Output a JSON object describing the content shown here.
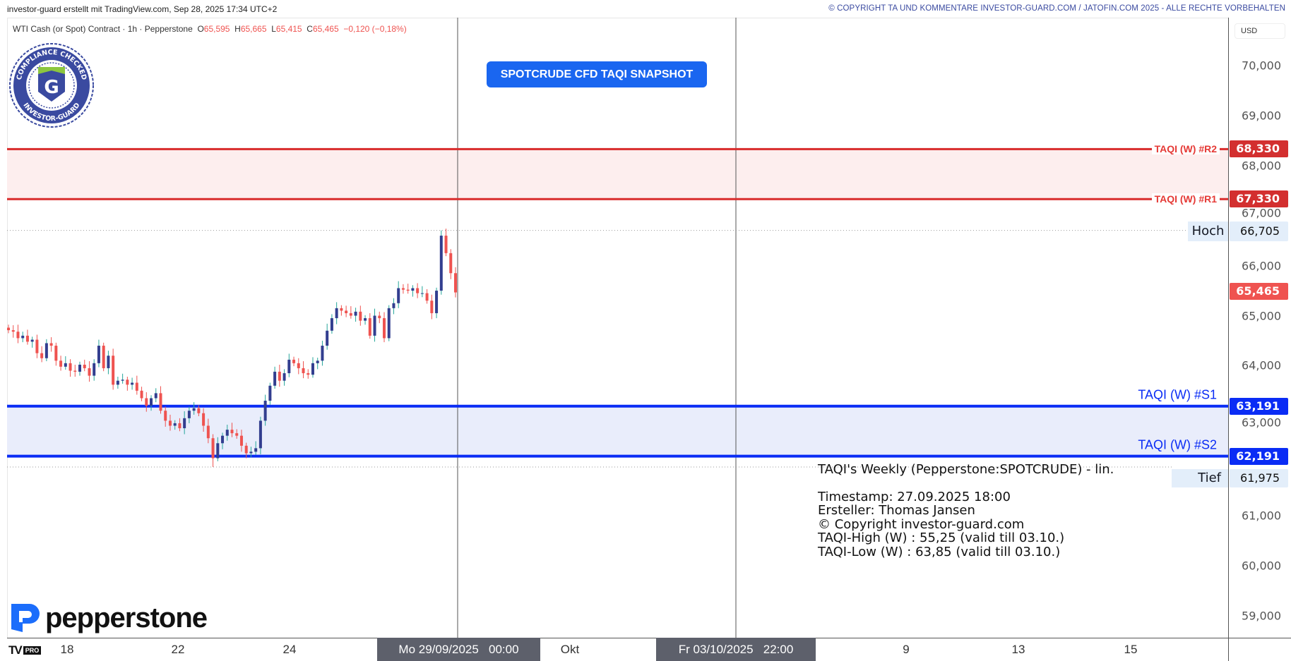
{
  "header": {
    "left_text": "investor-guard erstellt mit TradingView.com, Sep 28, 2025 17:34 UTC+2",
    "right_text": "© COPYRIGHT TA UND KOMMENTARE INVESTOR-GUARD.COM / JATOFIN.COM 2025 - ALLE RECHTE VORBEHALTEN"
  },
  "legend": {
    "symbol": "WTI Cash (or Spot) Contract · 1h · Pepperstone",
    "open_label": "O",
    "open": "65,595",
    "high_label": "H",
    "high": "65,665",
    "low_label": "L",
    "low": "65,415",
    "close_label": "C",
    "close": "65,465",
    "change": "−0,120 (−0,18%)"
  },
  "title_button": "SPOTCRUDE CFD TAQI SNAPSHOT",
  "seal": {
    "top_text": "COMPLIANCE CHECKED",
    "bottom_text": "INVESTOR-GUARD",
    "letter": "G"
  },
  "broker_logo": "pepperstone",
  "tv_logo": {
    "mark": "TV",
    "badge": "PRO"
  },
  "price_axis": {
    "currency": "USD",
    "ticks": [
      "70,000",
      "69,000",
      "68,000",
      "67,000",
      "66,000",
      "65,000",
      "64,000",
      "63,000",
      "61,000",
      "60,000",
      "59,000"
    ]
  },
  "levels": {
    "r2": {
      "label": "TAQI (W) #R2",
      "value": "68,330",
      "price": 68.33
    },
    "r1": {
      "label": "TAQI (W) #R1",
      "value": "67,330",
      "price": 67.33
    },
    "s1": {
      "label": "TAQI (W) #S1",
      "value": "63,191",
      "price": 63.191
    },
    "s2": {
      "label": "TAQI (W) #S2",
      "value": "62,191",
      "price": 62.191
    }
  },
  "high_marker": {
    "label": "Hoch",
    "value": "66,705",
    "price": 66.705
  },
  "low_marker": {
    "label": "Tief",
    "value": "61,975",
    "price": 61.975
  },
  "last_price": {
    "value": "65,465",
    "price": 65.465
  },
  "time_axis": {
    "ticks": [
      "18",
      "22",
      "24",
      "Okt",
      "9",
      "13",
      "15"
    ],
    "marker1": "Mo 29/09/2025   00:00",
    "marker2": "Fr 03/10/2025   22:00"
  },
  "info_box": {
    "title": "TAQI's Weekly (Pepperstone:SPOTCRUDE) - lin.",
    "timestamp": "Timestamp: 27.09.2025 18:00",
    "author": "Ersteller: Thomas Jansen",
    "copyright": "© Copyright investor-guard.com",
    "high": "TAQI-High (W) : 55,25 (valid till 03.10.)",
    "low": "TAQI-Low (W) : 63,85 (valid till 03.10.)"
  },
  "colors": {
    "up": "#323e8f",
    "down": "#ef5350",
    "resistance": "#d92b2b",
    "resistance_fill": "#fdeeee",
    "support": "#0a2cf5",
    "support_fill": "#e9edfb",
    "button": "#1a66f0",
    "last_price": "#ef5350"
  },
  "chart_data": {
    "type": "candlestick",
    "interval": "1h",
    "x_range": [
      "Sep 17",
      "Sep 26"
    ],
    "ylim": [
      58.7,
      70.4
    ],
    "closes": [
      64.71,
      64.68,
      64.55,
      64.6,
      64.48,
      64.52,
      64.25,
      64.15,
      64.45,
      64.4,
      64.1,
      63.98,
      64.05,
      63.9,
      63.88,
      64.02,
      63.95,
      63.8,
      64.05,
      64.4,
      63.95,
      64.2,
      63.62,
      63.7,
      63.72,
      63.62,
      63.66,
      63.5,
      63.35,
      63.2,
      63.35,
      63.45,
      63.1,
      62.9,
      62.8,
      62.85,
      62.75,
      62.95,
      63.1,
      63.15,
      63.05,
      62.8,
      62.55,
      62.15,
      62.45,
      62.6,
      62.72,
      62.65,
      62.6,
      62.4,
      62.25,
      62.28,
      62.35,
      62.9,
      63.3,
      63.6,
      63.88,
      63.7,
      63.85,
      64.12,
      64.05,
      63.95,
      63.85,
      63.82,
      64.05,
      64.1,
      64.4,
      64.7,
      64.95,
      65.15,
      65.1,
      65.05,
      65.0,
      65.08,
      64.9,
      64.95,
      64.6,
      65.0,
      64.95,
      64.55,
      65.15,
      65.25,
      65.55,
      65.52,
      65.5,
      65.55,
      65.45,
      65.45,
      65.3,
      65.05,
      65.5,
      66.6,
      66.25,
      65.85,
      65.465
    ]
  }
}
